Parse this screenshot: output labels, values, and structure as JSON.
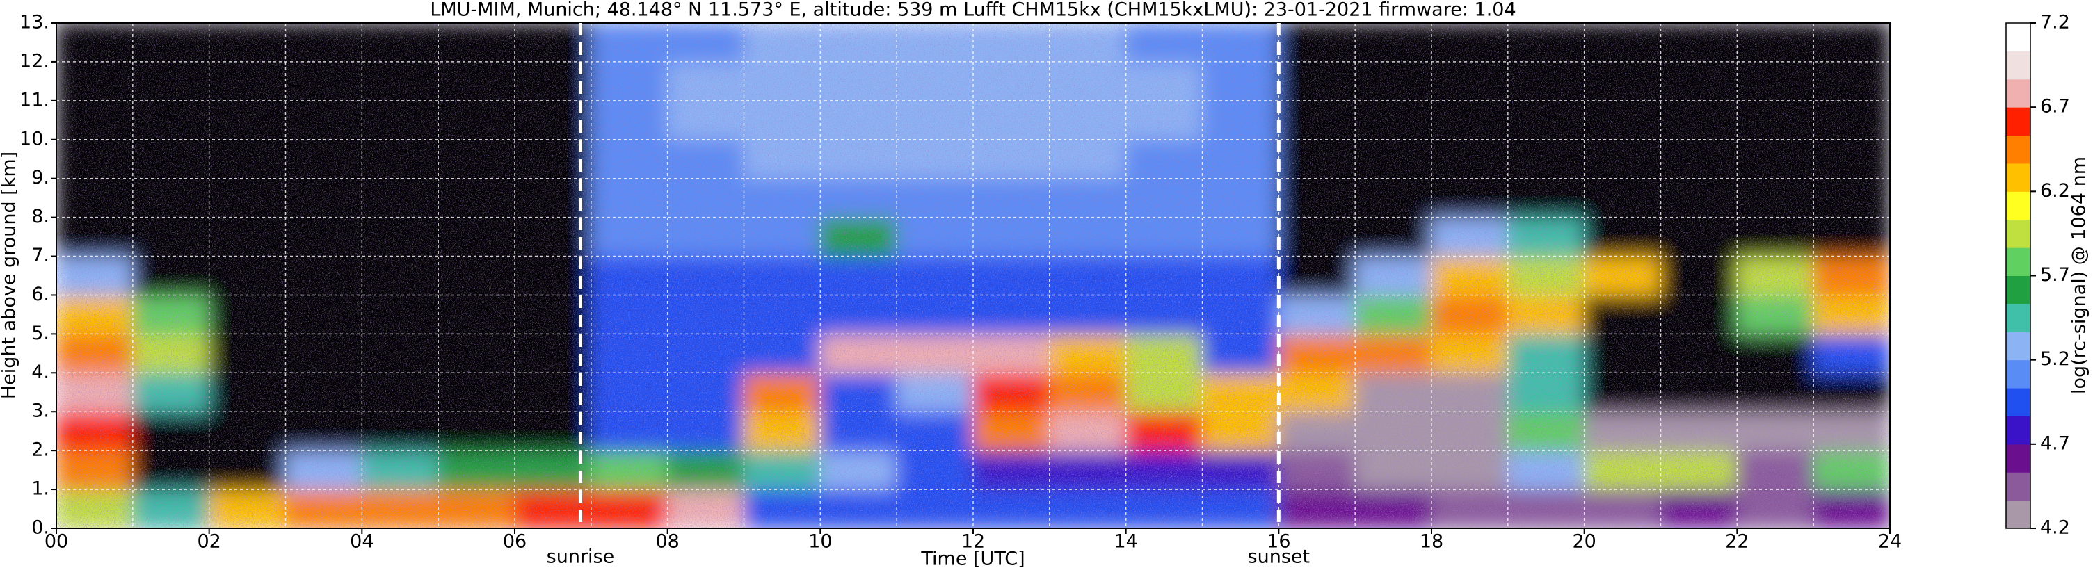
{
  "chart_data": {
    "type": "heatmap",
    "title": "LMU-MIM, Munich; 48.148° N 11.573° E, altitude: 539 m    Lufft CHM15kx (CHM15kxLMU): 23-01-2021    firmware: 1.04",
    "x_label": "Time [UTC]",
    "y_label": "Height above ground [km]",
    "colorbar_label": "log(rc-signal) @ 1064 nm",
    "x_bins": [
      0,
      1,
      2,
      3,
      4,
      5,
      6,
      7,
      8,
      9,
      10,
      11,
      12,
      13,
      14,
      15,
      16,
      17,
      18,
      19,
      20,
      21,
      22,
      23,
      24
    ],
    "y_bins": [
      0,
      1,
      2,
      3,
      4,
      5,
      6,
      7,
      8,
      9,
      10,
      11,
      12,
      13
    ],
    "z": [
      [
        6.0,
        5.5,
        6.3,
        6.4,
        6.4,
        6.5,
        6.6,
        6.6,
        6.8,
        5.0,
        5.0,
        4.9,
        5.0,
        5.0,
        5.0,
        4.9,
        4.6,
        4.6,
        4.5,
        4.5,
        4.5,
        4.6,
        4.5,
        4.6
      ],
      [
        6.5,
        3.9,
        3.9,
        5.3,
        5.5,
        5.6,
        5.6,
        5.7,
        5.6,
        5.4,
        5.2,
        5.0,
        4.8,
        4.8,
        4.8,
        4.7,
        4.4,
        4.3,
        4.3,
        5.2,
        6.0,
        6.0,
        4.4,
        5.8
      ],
      [
        6.6,
        4.0,
        3.8,
        3.8,
        3.8,
        3.8,
        3.8,
        4.9,
        4.9,
        6.2,
        4.9,
        4.9,
        6.5,
        6.8,
        6.6,
        6.3,
        4.3,
        4.3,
        4.2,
        5.8,
        4.2,
        4.2,
        4.2,
        4.2
      ],
      [
        6.7,
        5.5,
        3.8,
        3.8,
        3.8,
        3.8,
        3.8,
        4.9,
        4.9,
        6.4,
        4.9,
        5.2,
        6.6,
        6.4,
        6.0,
        6.3,
        6.3,
        4.3,
        4.3,
        5.5,
        4.0,
        4.0,
        4.0,
        4.0
      ],
      [
        6.4,
        6.0,
        3.8,
        3.8,
        3.8,
        3.8,
        3.8,
        4.9,
        4.9,
        4.9,
        6.8,
        6.8,
        6.8,
        6.2,
        6.0,
        5.0,
        6.5,
        6.5,
        6.2,
        5.5,
        4.0,
        4.0,
        4.0,
        5.0
      ],
      [
        6.2,
        5.8,
        3.8,
        3.8,
        3.8,
        3.8,
        3.8,
        5.0,
        5.0,
        5.0,
        5.0,
        5.0,
        5.0,
        5.0,
        5.0,
        5.0,
        5.2,
        5.8,
        6.5,
        6.3,
        4.0,
        4.0,
        5.8,
        6.3
      ],
      [
        5.3,
        4.0,
        3.8,
        3.8,
        3.8,
        3.8,
        3.8,
        5.0,
        5.0,
        5.0,
        5.0,
        5.0,
        5.0,
        5.0,
        5.0,
        5.0,
        4.0,
        5.2,
        6.3,
        6.0,
        6.2,
        4.0,
        6.0,
        6.4
      ],
      [
        3.9,
        3.9,
        3.8,
        3.8,
        3.8,
        3.8,
        3.8,
        5.1,
        5.1,
        5.1,
        5.6,
        5.1,
        5.1,
        5.1,
        5.1,
        5.1,
        4.0,
        4.0,
        5.3,
        5.5,
        4.0,
        4.0,
        4.0,
        4.0
      ],
      [
        3.9,
        3.9,
        3.8,
        3.8,
        3.8,
        3.8,
        3.8,
        5.1,
        5.1,
        5.1,
        5.1,
        5.1,
        5.1,
        5.1,
        5.1,
        5.1,
        3.9,
        3.9,
        3.9,
        3.9,
        3.9,
        3.9,
        3.9,
        3.9
      ],
      [
        3.9,
        3.9,
        3.8,
        3.8,
        3.8,
        3.8,
        3.8,
        5.1,
        5.1,
        5.2,
        5.2,
        5.2,
        5.2,
        5.2,
        5.1,
        5.1,
        3.9,
        3.9,
        3.9,
        3.9,
        3.9,
        3.9,
        3.9,
        3.9
      ],
      [
        3.9,
        3.9,
        3.8,
        3.8,
        3.8,
        3.8,
        3.8,
        5.1,
        5.2,
        5.2,
        5.2,
        5.2,
        5.2,
        5.2,
        5.2,
        5.1,
        3.9,
        3.9,
        3.9,
        3.9,
        3.9,
        3.9,
        3.9,
        3.9
      ],
      [
        3.9,
        3.9,
        3.8,
        3.8,
        3.8,
        3.8,
        3.8,
        5.1,
        5.2,
        5.2,
        5.2,
        5.2,
        5.2,
        5.2,
        5.2,
        5.1,
        3.9,
        3.9,
        3.9,
        3.9,
        3.9,
        3.9,
        3.9,
        3.9
      ],
      [
        3.9,
        3.9,
        3.8,
        3.8,
        3.8,
        3.8,
        3.8,
        5.1,
        5.1,
        5.2,
        5.2,
        5.2,
        5.2,
        5.2,
        5.1,
        5.1,
        3.9,
        3.9,
        3.9,
        3.9,
        3.9,
        3.9,
        3.9,
        3.9
      ]
    ],
    "clim": [
      4.2,
      7.2
    ],
    "under_color": "#000000",
    "colormap": [
      "#a898a8",
      "#8a5a9a",
      "#6a108e",
      "#3a12c8",
      "#2050f0",
      "#5a8cf5",
      "#8cb4f5",
      "#40c0a8",
      "#20a040",
      "#60d060",
      "#c0e040",
      "#ffff20",
      "#ffc000",
      "#ff8000",
      "#ff2000",
      "#f0b0b0",
      "#f0e0e0",
      "#ffffff"
    ],
    "xlim": [
      0,
      24
    ],
    "ylim": [
      0,
      13
    ],
    "xticks": [
      {
        "value": 0,
        "label": "00"
      },
      {
        "value": 2,
        "label": "02"
      },
      {
        "value": 4,
        "label": "04"
      },
      {
        "value": 6,
        "label": "06"
      },
      {
        "value": 8,
        "label": "08"
      },
      10,
      12,
      14,
      16,
      18,
      20,
      22,
      24
    ],
    "x_minor_ticks": [
      1,
      3,
      5,
      7,
      9,
      11,
      13,
      15,
      17,
      19,
      21,
      23
    ],
    "yticks": [
      {
        "value": 0,
        "label": "0."
      },
      {
        "value": 1,
        "label": "1."
      },
      {
        "value": 2,
        "label": "2."
      },
      {
        "value": 3,
        "label": "3."
      },
      {
        "value": 4,
        "label": "4."
      },
      {
        "value": 5,
        "label": "5."
      },
      {
        "value": 6,
        "label": "6."
      },
      {
        "value": 7,
        "label": "7."
      },
      {
        "value": 8,
        "label": "8."
      },
      {
        "value": 9,
        "label": "9."
      },
      {
        "value": 10,
        "label": "10."
      },
      {
        "value": 11,
        "label": "11."
      },
      {
        "value": 12,
        "label": "12."
      },
      {
        "value": 13,
        "label": "13."
      }
    ],
    "cbticks": [
      4.2,
      4.7,
      5.2,
      5.7,
      6.2,
      6.7,
      7.2
    ],
    "grid": true,
    "annotations": [
      {
        "label": "sunrise",
        "x": 6.86
      },
      {
        "label": "sunset",
        "x": 16.0
      }
    ]
  }
}
